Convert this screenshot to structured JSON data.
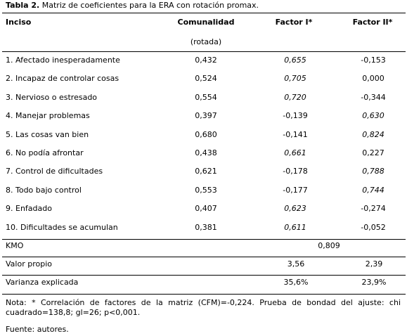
{
  "caption": {
    "label": "Tabla 2.",
    "text": "Matriz de coeficientes para la ERA con rotación promax."
  },
  "table": {
    "header": [
      "Inciso",
      "Comunalidad",
      "Factor I*",
      "Factor II*"
    ],
    "subheader": "(rotada)",
    "rows": [
      [
        "1. Afectado inesperadamente",
        "0,432",
        "0,655",
        "-0,153"
      ],
      [
        "2. Incapaz de controlar cosas",
        "0,524",
        "0,705",
        "0,000"
      ],
      [
        "3. Nervioso o estresado",
        "0,554",
        "0,720",
        "-0,344"
      ],
      [
        "4. Manejar problemas",
        "0,397",
        "-0,139",
        "0,630"
      ],
      [
        "5. Las cosas van bien",
        "0,680",
        "-0,141",
        "0,824"
      ],
      [
        "6. No podía afrontar",
        "0,438",
        "0,661",
        "0,227"
      ],
      [
        "7. Control de dificultades",
        "0,621",
        "-0,178",
        "0,788"
      ],
      [
        "8. Todo bajo control",
        "0,553",
        "-0,177",
        "0,744"
      ],
      [
        "9. Enfadado",
        "0,407",
        "0,623",
        "-0,274"
      ],
      [
        "10. Dificultades se acumulan",
        "0,381",
        "0,611",
        "-0,052"
      ]
    ],
    "italic_column": [
      2,
      2,
      2,
      3,
      3,
      2,
      3,
      3,
      2,
      2
    ],
    "kmo": {
      "label": "KMO",
      "value": "0,809"
    },
    "eigen": {
      "label": "Valor propio",
      "values": [
        "3,56",
        "2,39"
      ]
    },
    "variance": {
      "label": "Varianza explicada",
      "values": [
        "35,6%",
        "23,9%"
      ]
    }
  },
  "note": "Nota: * Correlación de factores de la matriz (CFM)=-0,224. Prueba de bondad del ajuste: chi cuadrado=138,8; gl=26; p<0,001.",
  "source": "Fuente: autores."
}
